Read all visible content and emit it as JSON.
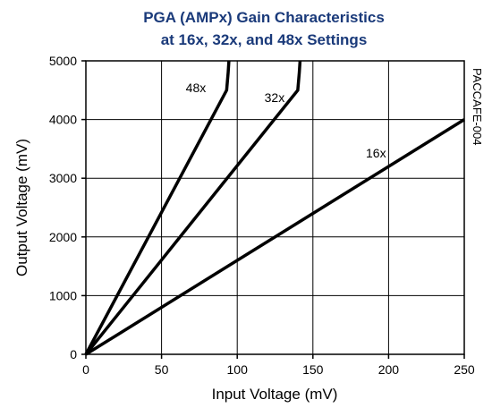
{
  "chart_data": {
    "type": "line",
    "title": [
      "PGA (AMPx) Gain Characteristics",
      "at 16x, 32x, and 48x Settings"
    ],
    "xlabel": "Input Voltage (mV)",
    "ylabel": "Output Voltage (mV)",
    "side_label": "PACCAFE-004",
    "xlim": [
      0,
      250
    ],
    "ylim": [
      0,
      5000
    ],
    "xticks": [
      0,
      50,
      100,
      150,
      200,
      250
    ],
    "yticks": [
      0,
      1000,
      2000,
      3000,
      4000,
      5000
    ],
    "grid": true,
    "series": [
      {
        "name": "48x",
        "x": [
          0,
          93,
          94,
          94.5
        ],
        "y": [
          0,
          4500,
          4800,
          5000
        ]
      },
      {
        "name": "32x",
        "x": [
          0,
          140,
          141,
          141.5
        ],
        "y": [
          0,
          4500,
          4800,
          5000
        ]
      },
      {
        "name": "16x",
        "x": [
          0,
          250
        ],
        "y": [
          0,
          4000
        ]
      }
    ]
  }
}
